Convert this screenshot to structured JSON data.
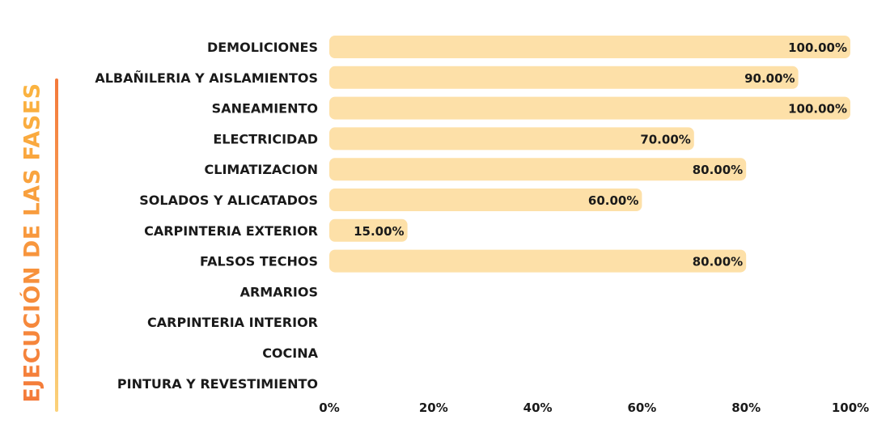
{
  "colors": {
    "bar": "#fde0a8",
    "title_start": "#f4793a",
    "title_end": "#fbb540",
    "text": "#1a1a1a"
  },
  "chart_data": {
    "type": "bar",
    "orientation": "horizontal",
    "title": "EJECUCIÓN DE LAS FASES",
    "xlabel": "",
    "ylabel": "",
    "xlim": [
      0,
      100
    ],
    "grid": false,
    "categories": [
      "DEMOLICIONES",
      "ALBAÑILERIA Y AISLAMIENTOS",
      "SANEAMIENTO",
      "ELECTRICIDAD",
      "CLIMATIZACION",
      "SOLADOS Y ALICATADOS",
      "CARPINTERIA EXTERIOR",
      "FALSOS TECHOS",
      "ARMARIOS",
      "CARPINTERIA INTERIOR",
      "COCINA",
      "PINTURA Y REVESTIMIENTO"
    ],
    "values": [
      100,
      90,
      100,
      70,
      80,
      60,
      15,
      80,
      null,
      null,
      null,
      null
    ],
    "data_labels": [
      "100.00%",
      "90.00%",
      "100.00%",
      "70.00%",
      "80.00%",
      "60.00%",
      "15.00%",
      "80.00%",
      "",
      "",
      "",
      ""
    ],
    "x_ticks": [
      0,
      20,
      40,
      60,
      80,
      100
    ],
    "x_tick_labels": [
      "0%",
      "20%",
      "40%",
      "60%",
      "80%",
      "100%"
    ]
  }
}
